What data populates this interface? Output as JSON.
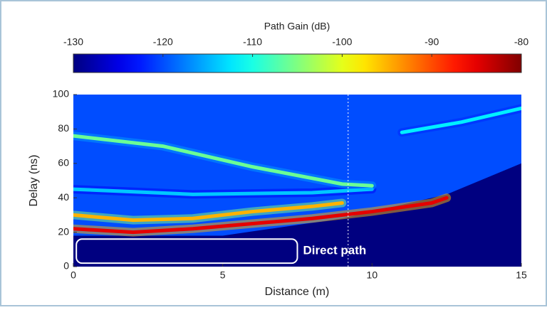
{
  "chart_data": {
    "type": "heatmap",
    "colorbar_label": "Path Gain (dB)",
    "clim": [
      -130,
      -80
    ],
    "cticks": [
      -130,
      -120,
      -110,
      -100,
      -90,
      -80
    ],
    "xlabel": "Distance (m)",
    "ylabel": "Delay (ns)",
    "xlim": [
      0,
      15
    ],
    "xticks": [
      0,
      5,
      10,
      15
    ],
    "ylim": [
      0,
      100
    ],
    "yticks": [
      0,
      20,
      40,
      60,
      80,
      100
    ],
    "floor_gain": -130,
    "clutter": {
      "x": [
        0,
        5,
        9,
        12.5,
        15
      ],
      "y": [
        18,
        18,
        28,
        42,
        60
      ],
      "gain": -120
    },
    "series": [
      {
        "x": [
          0,
          4,
          8,
          10
        ],
        "y": [
          45,
          42,
          43,
          45
        ],
        "gain": -114
      },
      {
        "x": [
          11,
          13,
          15
        ],
        "y": [
          78,
          84,
          92
        ],
        "gain": -112
      },
      {
        "x": [
          0,
          3,
          6,
          9,
          10
        ],
        "y": [
          76,
          70,
          58,
          48,
          47
        ],
        "gain": -106
      },
      {
        "x": [
          0,
          2,
          4,
          6,
          8,
          9
        ],
        "y": [
          30,
          27,
          28,
          32,
          35,
          37
        ],
        "gain": -95
      },
      {
        "x": [
          0,
          2,
          4,
          6,
          8,
          10,
          12,
          12.5
        ],
        "y": [
          22,
          20,
          22,
          25,
          28,
          32,
          37,
          40
        ],
        "gain": -85
      }
    ],
    "vline": 9.2,
    "annotation": {
      "text": "Direct path",
      "x": [
        0.1,
        7.5
      ],
      "y": [
        2,
        16
      ]
    }
  }
}
